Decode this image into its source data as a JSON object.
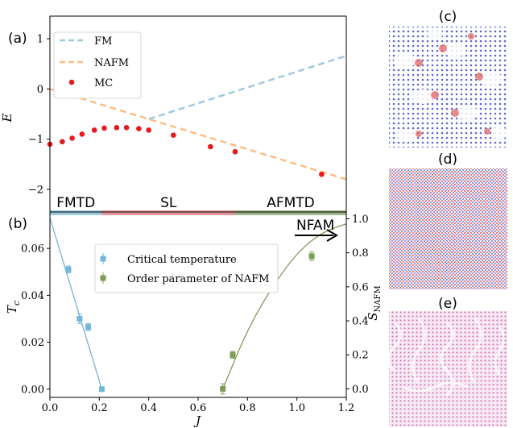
{
  "panel_labels": {
    "a": "(a)",
    "b": "(b)",
    "c": "(c)",
    "d": "(d)",
    "e": "(e)"
  },
  "chart_data": [
    {
      "type": "line",
      "panel": "(a)",
      "xlabel": "",
      "ylabel": "E",
      "xlim": [
        0,
        1.2
      ],
      "ylim": [
        -2.45,
        1.45
      ],
      "yticks": [
        1,
        0,
        -1,
        -2
      ],
      "ytick_labels": [
        "1",
        "0",
        "−1",
        "−2"
      ],
      "grid": false,
      "legend_position": "top-left",
      "series": [
        {
          "name": "FM",
          "style": "dashed",
          "color": "#9ecae1",
          "x": [
            0.4,
            1.2
          ],
          "y": [
            -0.6,
            0.66
          ]
        },
        {
          "name": "NAFM",
          "style": "dashed",
          "color": "#fdbe85",
          "x": [
            0.0,
            1.2
          ],
          "y": [
            0.0,
            -1.8
          ]
        },
        {
          "name": "MC",
          "style": "points",
          "color": "#e41a1c",
          "x": [
            0.0,
            0.05,
            0.09,
            0.13,
            0.18,
            0.22,
            0.27,
            0.31,
            0.36,
            0.4,
            0.5,
            0.65,
            0.75,
            1.1
          ],
          "y": [
            -1.1,
            -1.05,
            -0.98,
            -0.9,
            -0.82,
            -0.78,
            -0.77,
            -0.77,
            -0.79,
            -0.82,
            -0.92,
            -1.15,
            -1.25,
            -1.7
          ]
        }
      ],
      "regions": [
        {
          "label": "FMTD",
          "from": 0.0,
          "to": 0.21,
          "color": "#9ecae1"
        },
        {
          "label": "SL",
          "from": 0.21,
          "to": 0.75,
          "color": "#e7969c"
        },
        {
          "label": "AFMTD",
          "from": 0.75,
          "to": 1.2,
          "color": "#a1b78c"
        }
      ]
    },
    {
      "type": "scatter",
      "panel": "(b)",
      "xlabel": "J",
      "ylabel": "T_c",
      "y2label": "S_NAFM",
      "xlim": [
        0,
        1.2
      ],
      "xticks": [
        0.0,
        0.2,
        0.4,
        0.6,
        0.8,
        1.0,
        1.2
      ],
      "xtick_labels": [
        "0.0",
        "0.2",
        "0.4",
        "0.6",
        "0.8",
        "1.0",
        "1.2"
      ],
      "ylim": [
        -0.0035,
        0.0755
      ],
      "yticks": [
        0.0,
        0.02,
        0.04,
        0.06
      ],
      "ytick_labels": [
        "0.00",
        "0.02",
        "0.04",
        "0.06"
      ],
      "y2lim": [
        -0.05,
        1.04
      ],
      "y2ticks": [
        0.0,
        0.2,
        0.4,
        0.6,
        0.8,
        1.0
      ],
      "y2tick_labels": [
        "0.0",
        "0.2",
        "0.4",
        "0.6",
        "0.8",
        "1.0"
      ],
      "grid": false,
      "legend_position": "top-center",
      "annotation": "NFAM",
      "series": [
        {
          "name": "Critical temperature",
          "axis": "left",
          "color": "#73b6d9",
          "x": [
            0.075,
            0.12,
            0.155,
            0.21
          ],
          "y": [
            0.051,
            0.03,
            0.0265,
            0.0
          ],
          "err": [
            0.0015,
            0.002,
            0.0015,
            0.0005
          ],
          "fit_x": [
            0.0,
            0.21
          ],
          "fit_y": [
            0.073,
            0.0
          ]
        },
        {
          "name": "Order parameter of NAFM",
          "axis": "right",
          "color": "#7f9c59",
          "x": [
            0.7,
            0.74,
            1.06
          ],
          "y": [
            0.0,
            0.2,
            0.78
          ],
          "err": [
            0.03,
            0.02,
            0.025
          ],
          "fit_x": [
            0.7,
            0.8,
            0.9,
            1.0,
            1.1,
            1.2
          ],
          "fit_y": [
            0.0,
            0.35,
            0.6,
            0.8,
            0.92,
            0.97
          ]
        }
      ]
    }
  ],
  "images": [
    {
      "panel": "(c)",
      "pattern": "skyrmion-lattice",
      "colors": [
        "#2b3cc9",
        "#ffffff",
        "#e07070"
      ]
    },
    {
      "panel": "(d)",
      "pattern": "noisy-red-blue",
      "colors": [
        "#e34a4a",
        "#4a58e0",
        "#ffffff"
      ]
    },
    {
      "panel": "(e)",
      "pattern": "magenta-swirls",
      "colors": [
        "#cc4fa8",
        "#ffffff"
      ]
    }
  ]
}
